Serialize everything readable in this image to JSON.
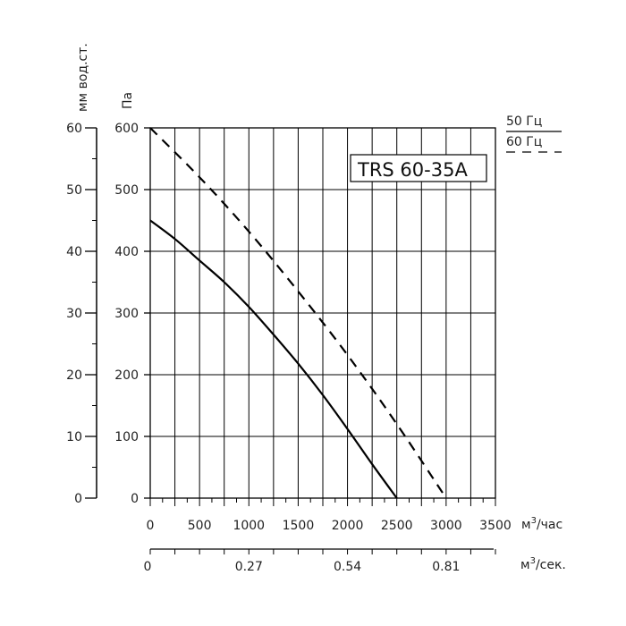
{
  "chart_data": {
    "type": "line",
    "model_label": "TRS 60-35A",
    "y_left_mm": {
      "label": "мм вод.ст.",
      "ticks": [
        "0",
        "10",
        "20",
        "30",
        "40",
        "50",
        "60"
      ],
      "range": [
        0,
        60
      ]
    },
    "y_pa": {
      "label": "Па",
      "ticks": [
        "0",
        "100",
        "200",
        "300",
        "400",
        "500",
        "600"
      ],
      "range": [
        0,
        600
      ]
    },
    "x_m3h": {
      "label": "м³/час",
      "ticks": [
        "0",
        "500",
        "1000",
        "1500",
        "2000",
        "2500",
        "3000",
        "3500"
      ],
      "range": [
        0,
        3500
      ]
    },
    "x_m3s": {
      "label": "м³/сек.",
      "ticks": [
        "0",
        "0.27",
        "0.54",
        "0.81"
      ]
    },
    "grid": true,
    "legend": {
      "position": "top-right",
      "entries": [
        {
          "label": "50 Гц",
          "style": "solid"
        },
        {
          "label": "60 Гц",
          "style": "dashed"
        }
      ]
    },
    "series": [
      {
        "name": "50 Гц",
        "style": "solid",
        "color": "#000000",
        "x": [
          0,
          250,
          500,
          750,
          1000,
          1250,
          1500,
          1750,
          2000,
          2250,
          2500
        ],
        "y": [
          450,
          420,
          385,
          350,
          310,
          265,
          218,
          167,
          112,
          55,
          0
        ]
      },
      {
        "name": "60 Гц",
        "style": "dashed",
        "color": "#000000",
        "x": [
          0,
          500,
          1000,
          1500,
          2000,
          2500,
          3000
        ],
        "y": [
          600,
          520,
          432,
          335,
          232,
          120,
          0
        ]
      }
    ]
  }
}
